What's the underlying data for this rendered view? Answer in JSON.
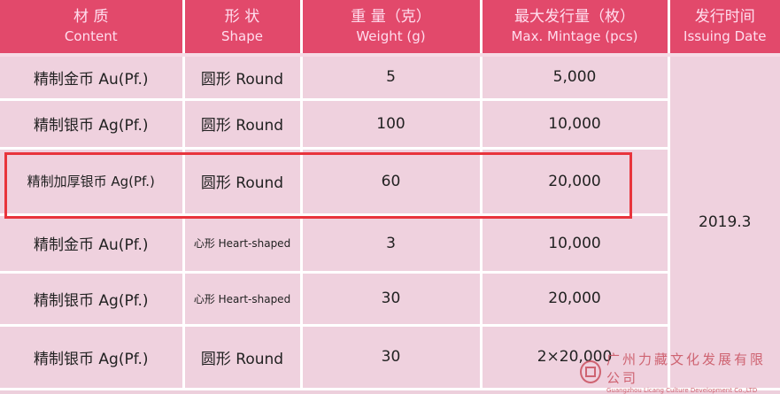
{
  "headers": [
    {
      "zh": "材 质",
      "en": "Content"
    },
    {
      "zh": "形 状",
      "en": "Shape"
    },
    {
      "zh": "重 量（克）",
      "en": "Weight (g)"
    },
    {
      "zh": "最大发行量（枚）",
      "en": "Max. Mintage (pcs)"
    },
    {
      "zh": "发行时间",
      "en": "Issuing Date"
    }
  ],
  "rows": [
    {
      "content": "精制金币 Au(Pf.)",
      "shape": "圆形 Round",
      "weight": "5",
      "mintage": "5,000"
    },
    {
      "content": "精制银币 Ag(Pf.)",
      "shape": "圆形 Round",
      "weight": "100",
      "mintage": "10,000"
    },
    {
      "content": "精制加厚银币 Ag(Pf.)",
      "shape": "圆形 Round",
      "weight": "60",
      "mintage": "20,000",
      "highlighted": true
    },
    {
      "content": "精制金币 Au(Pf.)",
      "shape": "心形 Heart-shaped",
      "weight": "3",
      "mintage": "10,000"
    },
    {
      "content": "精制银币 Ag(Pf.)",
      "shape": "心形 Heart-shaped",
      "weight": "30",
      "mintage": "20,000"
    },
    {
      "content": "精制银币 Ag(Pf.)",
      "shape": "圆形 Round",
      "weight": "30",
      "mintage": "2×20,000"
    }
  ],
  "issuing_date": "2019.3",
  "watermark": {
    "zh": "广州力藏文化发展有限公司",
    "en": "Guangzhou Licang Culture Development Co.,LTD"
  },
  "colors": {
    "header": "#e2496b",
    "cell": "#efd1de",
    "highlight_box": "#e8343c"
  }
}
